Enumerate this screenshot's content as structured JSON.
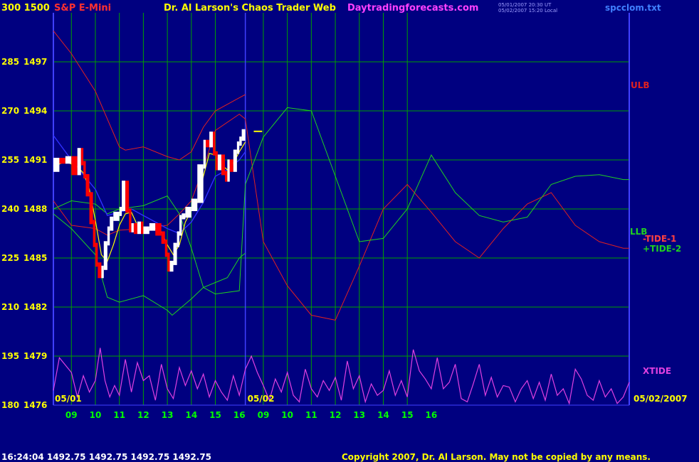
{
  "header": {
    "left_scale": "300 1500",
    "symbol": "S&P E-Mini",
    "title": "Dr. Al Larson's Chaos Trader Web",
    "site": "Daytradingforecasts.com",
    "timestamp_1": "05/01/2007 20:30 UT",
    "timestamp_2": "05/02/2007 15:20 Local",
    "file": "spcclom.txt"
  },
  "footer": {
    "quote": "16:24:04  1492.75 1492.75 1492.75 1492.75",
    "copyright": "Copyright 2007, Dr. Al Larson. May not be copied by any means."
  },
  "colors": {
    "background": "#000080",
    "grid": "#00a000",
    "price_up": "#ffffff",
    "price_down": "#ff0000",
    "band_red": "#e02020",
    "band_green": "#20d020",
    "xtide": "#e040e0",
    "average_blue": "#3030ff",
    "average_yellow": "#ffff00",
    "axis_text": "#ffff00",
    "time_text": "#00ff00",
    "day_divider": "#4040ff"
  },
  "chart_data": {
    "type": "line",
    "title": "S&P E-Mini",
    "y_axis_left": {
      "oscillator_labels": [
        "300",
        "285",
        "270",
        "255",
        "240",
        "225",
        "210",
        "195",
        "180"
      ],
      "price_labels": [
        "1500",
        "1497",
        "1494",
        "1491",
        "1488",
        "1485",
        "1482",
        "1479",
        "1476"
      ],
      "ylim": [
        1476,
        1500
      ]
    },
    "x_axis": {
      "day1": "05/01",
      "day2": "05/02",
      "date_right": "05/02/2007",
      "hours_day1": [
        "09",
        "10",
        "11",
        "12",
        "13",
        "14",
        "15",
        "16"
      ],
      "hours_day2": [
        "09",
        "10",
        "11",
        "12",
        "13",
        "14",
        "15",
        "16"
      ],
      "xlim_hours": [
        8.25,
        32.25
      ]
    },
    "grid": true,
    "series_labels": {
      "ulb": "ULB",
      "llb": "LLB",
      "tide1": "-TIDE-1",
      "tide2": "+TIDE-2",
      "xtide": "XTIDE"
    },
    "series": [
      {
        "name": "price",
        "x": [
          8.25,
          8.5,
          8.75,
          9.0,
          9.25,
          9.4,
          9.5,
          9.6,
          9.75,
          9.9,
          10.0,
          10.1,
          10.25,
          10.35,
          10.5,
          10.6,
          10.75,
          11.0,
          11.1,
          11.25,
          11.4,
          11.5,
          11.6,
          11.75,
          11.9,
          12.0,
          12.25,
          12.5,
          12.75,
          12.9,
          13.0,
          13.1,
          13.25,
          13.4,
          13.5,
          13.6,
          13.75,
          14.0,
          14.25,
          14.5,
          14.6,
          14.75,
          14.9,
          15.0,
          15.1,
          15.25,
          15.4,
          15.5,
          15.6,
          15.75,
          15.9,
          16.0,
          16.1,
          16.25
        ],
        "y": [
          1490.4,
          1491.0,
          1490.9,
          1491.1,
          1490.2,
          1491.6,
          1490.8,
          1490.0,
          1488.9,
          1487.2,
          1485.8,
          1484.6,
          1483.9,
          1484.4,
          1485.9,
          1486.8,
          1487.4,
          1487.7,
          1488.0,
          1489.6,
          1487.9,
          1486.7,
          1487.0,
          1486.6,
          1487.1,
          1486.6,
          1486.8,
          1487.0,
          1486.5,
          1486.0,
          1485.2,
          1484.3,
          1484.7,
          1485.8,
          1486.5,
          1487.5,
          1487.6,
          1488.0,
          1488.5,
          1490.6,
          1492.1,
          1491.9,
          1492.6,
          1491.4,
          1490.5,
          1491.2,
          1490.2,
          1489.8,
          1490.9,
          1490.4,
          1491.5,
          1492.0,
          1492.3,
          1492.75
        ]
      },
      {
        "name": "ulb",
        "x": [
          8.25,
          9.0,
          10.0,
          11.0,
          11.25,
          12.0,
          13.0,
          13.5,
          14.0,
          14.5,
          15.0,
          16.0,
          16.25
        ],
        "y": [
          1498.9,
          1497.5,
          1495.2,
          1491.8,
          1491.6,
          1491.8,
          1491.2,
          1491.0,
          1491.5,
          1493.0,
          1494.0,
          1494.8,
          1495.0
        ]
      },
      {
        "name": "llb",
        "x": [
          8.25,
          9.0,
          10.0,
          10.5,
          11.0,
          12.0,
          13.0,
          13.2,
          14.0,
          14.5,
          15.0,
          15.5,
          16.0,
          16.25
        ],
        "y": [
          1487.7,
          1486.8,
          1485.2,
          1482.6,
          1482.3,
          1482.7,
          1481.8,
          1481.5,
          1482.5,
          1483.2,
          1483.5,
          1483.8,
          1485.0,
          1485.3
        ]
      },
      {
        "name": "tide1",
        "x": [
          8.25,
          9.0,
          10.0,
          10.5,
          11.0,
          12.0,
          13.0,
          13.5,
          14.0,
          14.5,
          15.0,
          16.0,
          16.25,
          17.0,
          18.0,
          19.0,
          20.0,
          21.0,
          22.0,
          23.0,
          24.0,
          25.0,
          26.0,
          27.0,
          28.0,
          29.0,
          30.0,
          31.0,
          32.0,
          32.25
        ],
        "y": [
          1488.5,
          1487.0,
          1486.8,
          1486.4,
          1486.7,
          1486.8,
          1487.0,
          1487.7,
          1488.5,
          1490.5,
          1492.8,
          1493.8,
          1493.5,
          1486.0,
          1483.3,
          1481.5,
          1481.2,
          1484.5,
          1488.0,
          1489.5,
          1487.8,
          1486.0,
          1485.0,
          1486.8,
          1488.3,
          1489.0,
          1487.0,
          1486.0,
          1485.6,
          1485.6
        ]
      },
      {
        "name": "tide2",
        "x": [
          8.25,
          9.0,
          10.0,
          10.5,
          11.0,
          12.0,
          13.0,
          13.5,
          14.0,
          14.5,
          15.0,
          16.0,
          16.25,
          17.0,
          18.0,
          19.0,
          20.0,
          21.0,
          22.0,
          23.0,
          24.0,
          25.0,
          26.0,
          27.0,
          28.0,
          29.0,
          30.0,
          31.0,
          32.0,
          32.25
        ],
        "y": [
          1488.0,
          1488.5,
          1488.3,
          1487.7,
          1488.0,
          1488.2,
          1488.8,
          1487.7,
          1485.6,
          1483.2,
          1482.8,
          1483.0,
          1489.5,
          1492.4,
          1494.2,
          1494.0,
          1490.0,
          1486.0,
          1486.2,
          1488.0,
          1491.3,
          1489.0,
          1487.6,
          1487.2,
          1487.5,
          1489.5,
          1490.0,
          1490.1,
          1489.8,
          1489.8
        ]
      },
      {
        "name": "xtide",
        "x": [
          8.25,
          8.5,
          9.0,
          9.25,
          9.5,
          9.75,
          10.0,
          10.2,
          10.4,
          10.6,
          10.8,
          11.0,
          11.25,
          11.5,
          11.75,
          12.0,
          12.25,
          12.5,
          12.75,
          13.0,
          13.25,
          13.5,
          13.75,
          14.0,
          14.25,
          14.5,
          14.75,
          15.0,
          15.25,
          15.5,
          15.75,
          16.0,
          16.25,
          16.5,
          16.75,
          17.0,
          17.25,
          17.5,
          17.75,
          18.0,
          18.25,
          18.5,
          18.75,
          19.0,
          19.25,
          19.5,
          19.75,
          20.0,
          20.25,
          20.5,
          20.75,
          21.0,
          21.25,
          21.5,
          21.75,
          22.0,
          22.25,
          22.5,
          22.75,
          23.0,
          23.25,
          23.5,
          23.75,
          24.0,
          24.25,
          24.5,
          24.75,
          25.0,
          25.25,
          25.5,
          25.75,
          26.0,
          26.25,
          26.5,
          26.75,
          27.0,
          27.25,
          27.5,
          27.75,
          28.0,
          28.25,
          28.5,
          28.75,
          29.0,
          29.25,
          29.5,
          29.75,
          30.0,
          30.25,
          30.5,
          30.75,
          31.0,
          31.25,
          31.5,
          31.75,
          32.0,
          32.25
        ],
        "y": [
          1476.9,
          1478.9,
          1478.0,
          1476.5,
          1477.8,
          1476.8,
          1477.5,
          1479.5,
          1477.5,
          1476.5,
          1477.2,
          1476.6,
          1478.8,
          1476.8,
          1478.6,
          1477.5,
          1477.8,
          1476.3,
          1478.5,
          1477.0,
          1476.4,
          1478.3,
          1477.2,
          1478.1,
          1477.0,
          1477.9,
          1476.5,
          1477.5,
          1476.8,
          1476.3,
          1477.8,
          1476.6,
          1478.2,
          1479.0,
          1478.0,
          1477.2,
          1476.3,
          1477.6,
          1476.8,
          1478.0,
          1476.6,
          1476.2,
          1478.2,
          1477.0,
          1476.5,
          1477.5,
          1476.9,
          1477.7,
          1476.3,
          1478.7,
          1477.0,
          1477.8,
          1476.2,
          1477.3,
          1476.6,
          1476.9,
          1478.1,
          1476.6,
          1477.5,
          1476.5,
          1479.4,
          1478.1,
          1477.6,
          1477.0,
          1478.9,
          1477.0,
          1477.4,
          1478.5,
          1476.4,
          1476.2,
          1477.3,
          1478.5,
          1476.6,
          1477.7,
          1476.5,
          1477.2,
          1477.1,
          1476.2,
          1477.0,
          1477.5,
          1476.4,
          1477.4,
          1476.3,
          1477.9,
          1476.6,
          1477.0,
          1476.1,
          1478.2,
          1477.6,
          1476.6,
          1476.3,
          1477.5,
          1476.5,
          1477.0,
          1476.1,
          1476.5,
          1477.4
        ]
      },
      {
        "name": "avg_blue",
        "x": [
          8.25,
          9.0,
          10.0,
          10.5,
          11.0,
          11.5,
          12.0,
          12.5,
          13.0,
          13.5,
          14.0,
          14.5,
          15.0,
          15.5,
          16.0,
          16.25
        ],
        "y": [
          1492.5,
          1491.0,
          1489.2,
          1487.6,
          1487.8,
          1488.0,
          1487.6,
          1487.2,
          1486.8,
          1486.5,
          1487.2,
          1488.4,
          1490.0,
          1490.4,
          1491.0,
          1491.5
        ]
      },
      {
        "name": "avg_yellow",
        "x": [
          8.25,
          8.75,
          9.25,
          9.5,
          9.75,
          10.0,
          10.25,
          10.5,
          10.75,
          11.0,
          11.25,
          11.5,
          11.75,
          12.0,
          12.25,
          12.5,
          12.75,
          13.0,
          13.25,
          13.5,
          13.75,
          14.0,
          14.25,
          14.5,
          14.75,
          15.0,
          15.25,
          15.5,
          15.75,
          16.0,
          16.25
        ],
        "y": [
          1490.6,
          1490.9,
          1490.6,
          1490.2,
          1489.2,
          1487.3,
          1485.2,
          1484.8,
          1485.8,
          1487.0,
          1487.7,
          1487.8,
          1487.0,
          1486.8,
          1486.7,
          1486.8,
          1486.6,
          1485.8,
          1485.2,
          1485.8,
          1487.2,
          1487.9,
          1488.4,
          1490.0,
          1491.4,
          1491.3,
          1490.7,
          1490.4,
          1490.8,
          1491.5,
          1492.1
        ]
      },
      {
        "name": "forecast_tick",
        "x": [
          16.6,
          16.95
        ],
        "y": [
          1492.75,
          1492.75
        ]
      }
    ]
  }
}
